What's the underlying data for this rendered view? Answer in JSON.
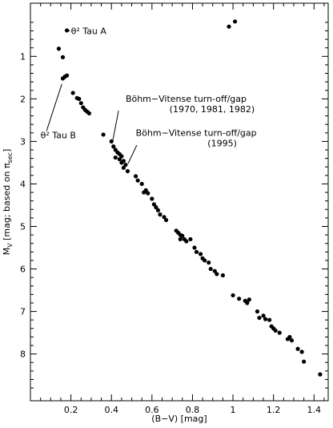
{
  "chart_data": {
    "type": "scatter",
    "xlabel": "(B−V) [mag]",
    "ylabel_main": "M",
    "ylabel_main_sub": "V",
    "ylabel_rest": " [mag; based on π",
    "ylabel_pi_sub": "sec",
    "ylabel_close": "]",
    "xlim": [
      0.0,
      1.47
    ],
    "ylim": [
      9.1,
      -0.25
    ],
    "y_inverted": true,
    "x_ticks": [
      0.2,
      0.4,
      0.6,
      0.8,
      1.0,
      1.2,
      1.4
    ],
    "x_tick_labels": [
      "0.2",
      "0.4",
      "0.6",
      "0.8",
      "1",
      "1.2",
      "1.4"
    ],
    "y_ticks": [
      1,
      2,
      3,
      4,
      5,
      6,
      7,
      8
    ],
    "y_tick_labels": [
      "1",
      "2",
      "3",
      "4",
      "5",
      "6",
      "7",
      "8"
    ],
    "grid": false,
    "annotations": [
      {
        "text": "θ² Tau A",
        "x": 0.2,
        "y": 0.4
      },
      {
        "text": "θ² Tau B",
        "x": 0.05,
        "y": 2.85
      },
      {
        "text_line1": "Böhm−Vitense turn-off/gap",
        "text_line2": "(1970, 1981, 1982)",
        "x": 0.47,
        "y": 2.07
      },
      {
        "text_line1": "Böhm−Vitense turn-off/gap",
        "text_line2": "(1995)",
        "x": 0.52,
        "y": 2.87
      }
    ],
    "pointers": [
      {
        "x1": 0.195,
        "y1": 0.4,
        "x2": 0.18,
        "y2": 0.39
      },
      {
        "x1": 0.08,
        "y1": 2.75,
        "x2": 0.155,
        "y2": 1.65
      },
      {
        "x1": 0.435,
        "y1": 2.28,
        "x2": 0.405,
        "y2": 3.02
      },
      {
        "x1": 0.525,
        "y1": 3.09,
        "x2": 0.482,
        "y2": 3.52
      }
    ],
    "points": [
      {
        "x": 0.18,
        "y": 0.39
      },
      {
        "x": 0.14,
        "y": 0.82
      },
      {
        "x": 0.16,
        "y": 1.02
      },
      {
        "x": 0.16,
        "y": 1.52
      },
      {
        "x": 0.17,
        "y": 1.48
      },
      {
        "x": 0.18,
        "y": 1.45
      },
      {
        "x": 0.98,
        "y": 0.3
      },
      {
        "x": 1.01,
        "y": 0.18
      },
      {
        "x": 0.21,
        "y": 1.86
      },
      {
        "x": 0.23,
        "y": 1.98
      },
      {
        "x": 0.24,
        "y": 2.0
      },
      {
        "x": 0.25,
        "y": 2.1
      },
      {
        "x": 0.26,
        "y": 2.2
      },
      {
        "x": 0.27,
        "y": 2.26
      },
      {
        "x": 0.28,
        "y": 2.3
      },
      {
        "x": 0.29,
        "y": 2.34
      },
      {
        "x": 0.36,
        "y": 2.84
      },
      {
        "x": 0.4,
        "y": 3.0
      },
      {
        "x": 0.41,
        "y": 3.12
      },
      {
        "x": 0.42,
        "y": 3.2
      },
      {
        "x": 0.43,
        "y": 3.26
      },
      {
        "x": 0.44,
        "y": 3.3
      },
      {
        "x": 0.45,
        "y": 3.35
      },
      {
        "x": 0.42,
        "y": 3.38
      },
      {
        "x": 0.44,
        "y": 3.42
      },
      {
        "x": 0.45,
        "y": 3.5
      },
      {
        "x": 0.46,
        "y": 3.46
      },
      {
        "x": 0.47,
        "y": 3.55
      },
      {
        "x": 0.46,
        "y": 3.62
      },
      {
        "x": 0.48,
        "y": 3.7
      },
      {
        "x": 0.52,
        "y": 3.82
      },
      {
        "x": 0.53,
        "y": 3.92
      },
      {
        "x": 0.55,
        "y": 4.0
      },
      {
        "x": 0.56,
        "y": 4.2
      },
      {
        "x": 0.57,
        "y": 4.15
      },
      {
        "x": 0.58,
        "y": 4.22
      },
      {
        "x": 0.6,
        "y": 4.35
      },
      {
        "x": 0.61,
        "y": 4.48
      },
      {
        "x": 0.62,
        "y": 4.55
      },
      {
        "x": 0.63,
        "y": 4.62
      },
      {
        "x": 0.64,
        "y": 4.72
      },
      {
        "x": 0.66,
        "y": 4.78
      },
      {
        "x": 0.67,
        "y": 4.85
      },
      {
        "x": 0.72,
        "y": 5.1
      },
      {
        "x": 0.73,
        "y": 5.15
      },
      {
        "x": 0.74,
        "y": 5.2
      },
      {
        "x": 0.75,
        "y": 5.22
      },
      {
        "x": 0.74,
        "y": 5.3
      },
      {
        "x": 0.76,
        "y": 5.3
      },
      {
        "x": 0.77,
        "y": 5.35
      },
      {
        "x": 0.79,
        "y": 5.3
      },
      {
        "x": 0.81,
        "y": 5.5
      },
      {
        "x": 0.82,
        "y": 5.6
      },
      {
        "x": 0.84,
        "y": 5.65
      },
      {
        "x": 0.85,
        "y": 5.75
      },
      {
        "x": 0.86,
        "y": 5.8
      },
      {
        "x": 0.88,
        "y": 5.85
      },
      {
        "x": 0.89,
        "y": 6.0
      },
      {
        "x": 0.91,
        "y": 6.05
      },
      {
        "x": 0.92,
        "y": 6.12
      },
      {
        "x": 0.95,
        "y": 6.15
      },
      {
        "x": 1.0,
        "y": 6.62
      },
      {
        "x": 1.03,
        "y": 6.7
      },
      {
        "x": 1.06,
        "y": 6.75
      },
      {
        "x": 1.07,
        "y": 6.8
      },
      {
        "x": 1.08,
        "y": 6.72
      },
      {
        "x": 1.12,
        "y": 7.0
      },
      {
        "x": 1.13,
        "y": 7.15
      },
      {
        "x": 1.15,
        "y": 7.1
      },
      {
        "x": 1.16,
        "y": 7.18
      },
      {
        "x": 1.18,
        "y": 7.2
      },
      {
        "x": 1.19,
        "y": 7.35
      },
      {
        "x": 1.2,
        "y": 7.4
      },
      {
        "x": 1.21,
        "y": 7.45
      },
      {
        "x": 1.23,
        "y": 7.5
      },
      {
        "x": 1.27,
        "y": 7.65
      },
      {
        "x": 1.28,
        "y": 7.6
      },
      {
        "x": 1.29,
        "y": 7.68
      },
      {
        "x": 1.32,
        "y": 7.88
      },
      {
        "x": 1.34,
        "y": 7.95
      },
      {
        "x": 1.35,
        "y": 8.18
      },
      {
        "x": 1.43,
        "y": 8.48
      }
    ]
  }
}
